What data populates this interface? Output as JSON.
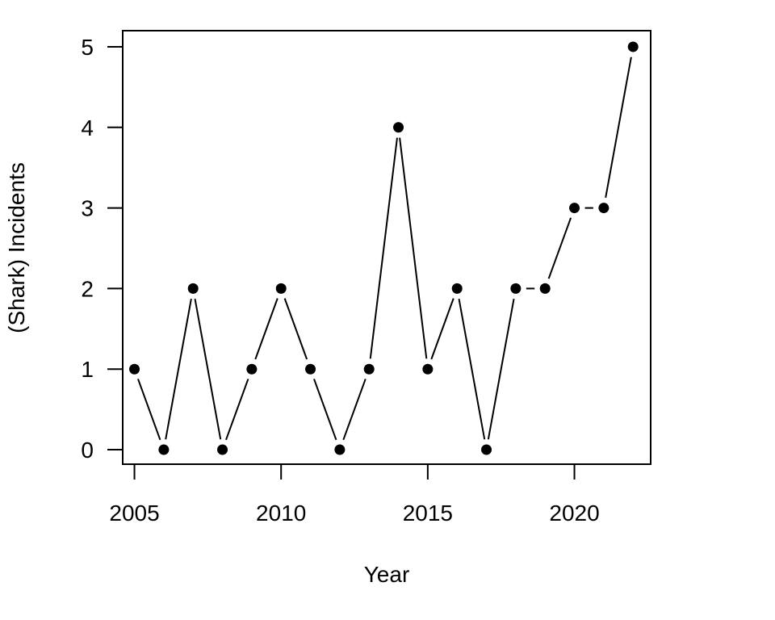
{
  "chart_data": {
    "type": "line",
    "title": "",
    "xlabel": "Year",
    "ylabel": "(Shark) Incidents",
    "xlim": [
      2004.6,
      2022.6
    ],
    "ylim": [
      -0.18,
      5.2
    ],
    "xticks": [
      2005,
      2010,
      2015,
      2020
    ],
    "yticks": [
      0,
      1,
      2,
      3,
      4,
      5
    ],
    "grid": false,
    "legend": "none",
    "series": [
      {
        "x": [
          2005,
          2006,
          2007,
          2008,
          2009,
          2010,
          2011,
          2012,
          2013,
          2014,
          2015,
          2016,
          2017,
          2018,
          2019,
          2020,
          2021,
          2022
        ],
        "y": [
          1,
          0,
          2,
          0,
          1,
          2,
          1,
          0,
          1,
          4,
          1,
          2,
          0,
          2,
          2,
          3,
          3,
          5
        ],
        "marker": "filled-circle",
        "line_style": "overplotted",
        "color": "#000000"
      }
    ]
  }
}
